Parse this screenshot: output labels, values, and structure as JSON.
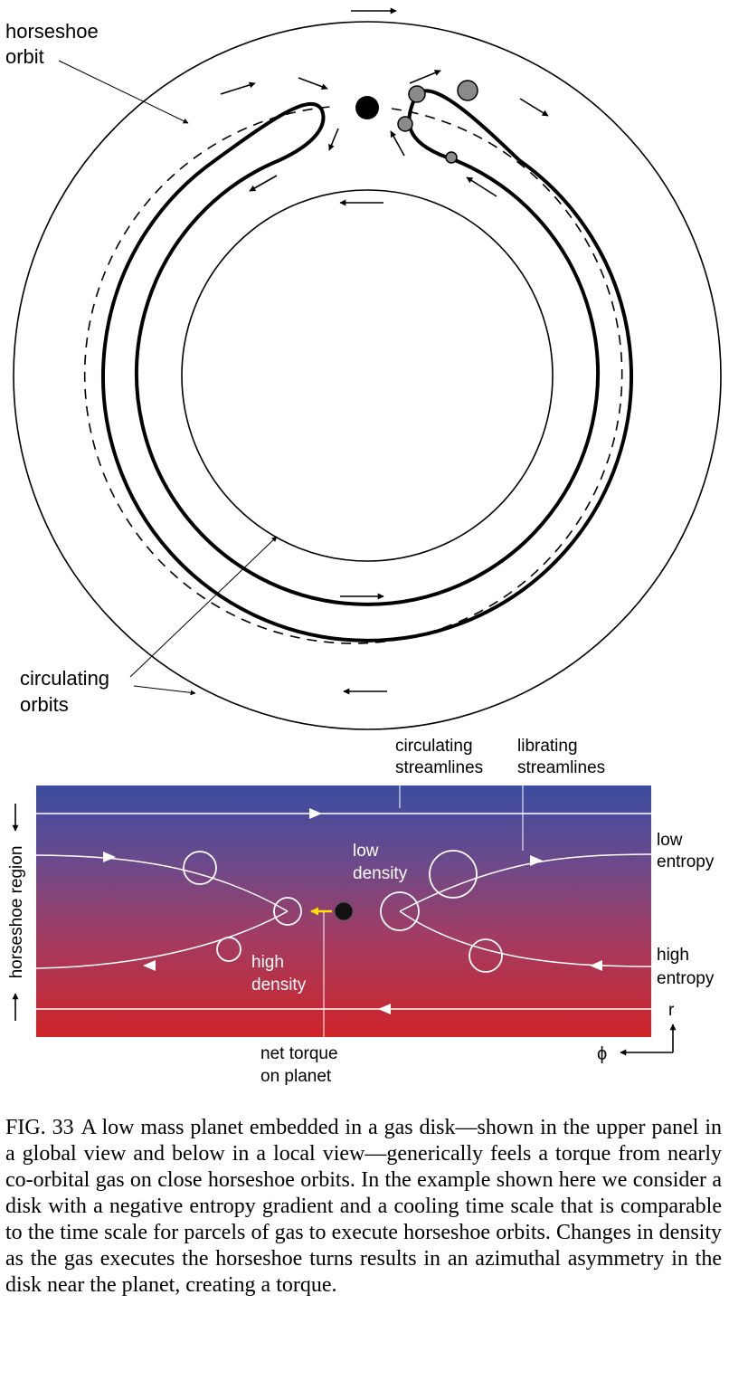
{
  "upper_panel": {
    "labels": {
      "horseshoe_orbit": [
        "horseshoe",
        "orbit"
      ],
      "circulating_orbits": [
        "circulating",
        "orbits"
      ]
    }
  },
  "lower_panel": {
    "labels": {
      "circulating_streamlines": [
        "circulating",
        "streamlines"
      ],
      "librating_streamlines": [
        "librating",
        "streamlines"
      ],
      "low_entropy": [
        "low",
        "entropy"
      ],
      "high_entropy": [
        "high",
        "entropy"
      ],
      "low_density": [
        "low",
        "density"
      ],
      "high_density": [
        "high",
        "density"
      ],
      "net_torque": [
        "net torque",
        "on planet"
      ],
      "horseshoe_region": "horseshoe region",
      "axis_r": "r",
      "axis_phi": "ϕ"
    },
    "colors": {
      "top": "#3b4ca0",
      "bottom": "#cf2428",
      "torque_arrow": "#ffe300"
    }
  },
  "caption": {
    "label": "FIG. 33",
    "text": "A low mass planet embedded in a gas disk—shown in the upper panel in a global view and below in a local view—generically feels a torque from nearly co-orbital gas on close horseshoe orbits. In the example shown here we consider a disk with a negative entropy gradient and a cooling time scale that is comparable to the time scale for parcels of gas to execute horseshoe orbits. Changes in density as the gas executes the horseshoe turns results in an azimuthal asymmetry in the disk near the planet, creating a torque."
  }
}
